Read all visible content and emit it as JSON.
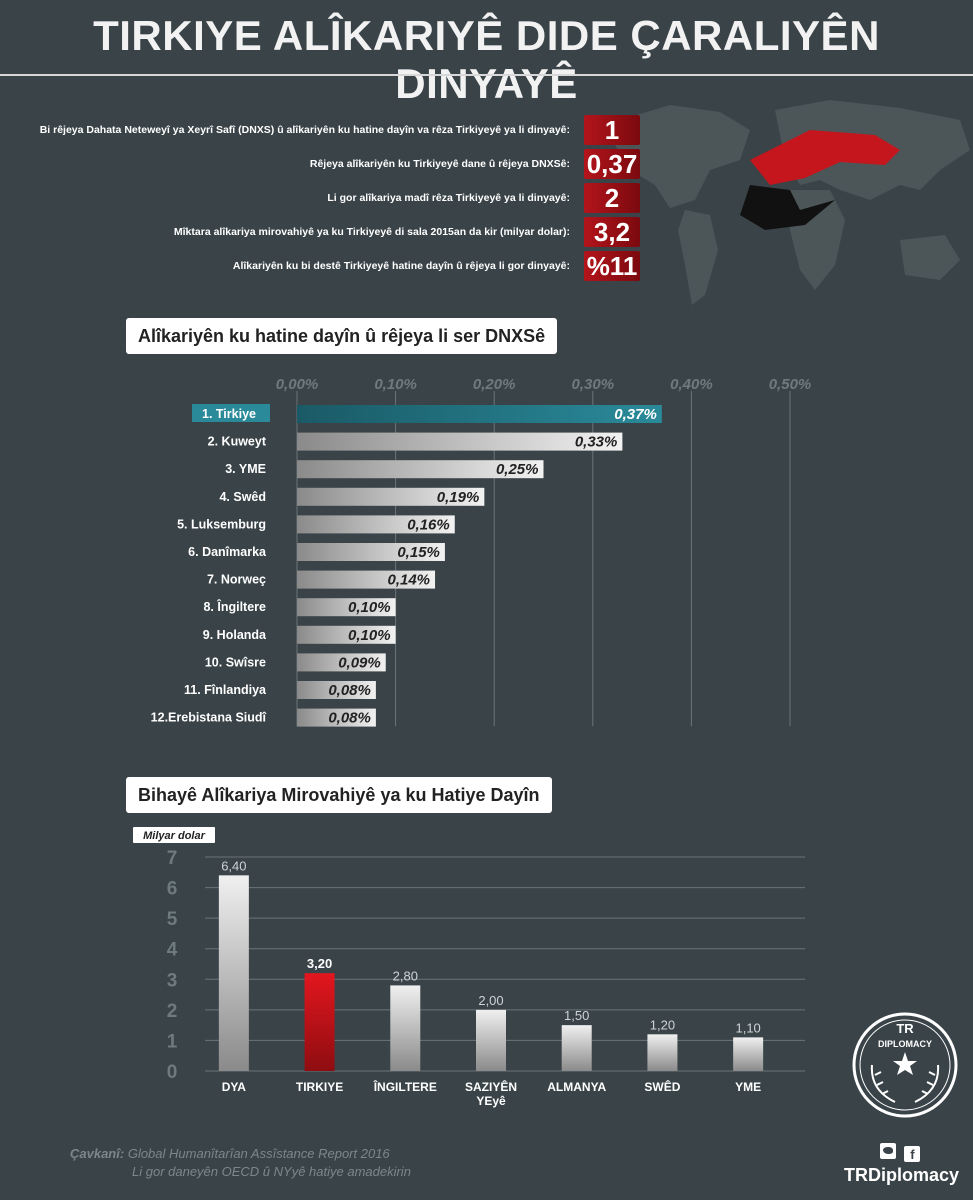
{
  "header": {
    "title": "TIRKIYE ALÎKARIYÊ DIDE ÇARALIYÊN DINYAYÊ"
  },
  "stats": [
    {
      "label": "Bi rêjeya Dahata Neteweyî ya Xeyrî Safî (DNXS) û alîkariyên ku hatine dayîn va rêza Tirkiyeyê ya li dinyayê:",
      "value": "1"
    },
    {
      "label": "Rêjeya alîkariyên ku Tirkiyeyê dane û rêjeya DNXSê:",
      "value": "0,37"
    },
    {
      "label": "Li gor alîkariya madî rêza Tirkiyeyê ya li dinyayê:",
      "value": "2"
    },
    {
      "label": "Mîktara alîkariya mirovahiyê ya ku Tirkiyeyê di sala 2015an da kir (milyar dolar):",
      "value": "3,2"
    },
    {
      "label": "Alîkariyên ku bi destê Tirkiyeyê hatine dayîn û rêjeya li gor dinyayê:",
      "value": "%11"
    }
  ],
  "colors": {
    "background": "#3a4448",
    "highlight_red": "#d71920",
    "highlight_teal": "#1f6f7e",
    "bar_gray": "#bdbdbd"
  },
  "icons": [
    "world-map-icon",
    "hands-icon",
    "twitter-icon",
    "facebook-icon",
    "star-icon"
  ],
  "chart_data": [
    {
      "type": "bar",
      "orientation": "horizontal",
      "title": "Alîkariyên ku hatine dayîn û rêjeya li ser DNXSê",
      "ticks": [
        "0,00%",
        "0,10%",
        "0,20%",
        "0,30%",
        "0,40%",
        "0,50%"
      ],
      "xlim": [
        0,
        0.5
      ],
      "grid": true,
      "highlight_index": 0,
      "categories": [
        "1. Tirkiye",
        "2. Kuweyt",
        "3. YME",
        "4. Swêd",
        "5. Luksemburg",
        "6. Danîmarka",
        "7. Norweç",
        "8. Îngiltere",
        "9. Holanda",
        "10. Swîsre",
        "11. Fînlandiya",
        "12.Erebistana Siudî"
      ],
      "values": [
        0.37,
        0.33,
        0.25,
        0.19,
        0.16,
        0.15,
        0.14,
        0.1,
        0.1,
        0.09,
        0.08,
        0.08
      ],
      "value_labels": [
        "0,37%",
        "0,33%",
        "0,25%",
        "0,19%",
        "0,16%",
        "0,15%",
        "0,14%",
        "0,10%",
        "0,10%",
        "0,09%",
        "0,08%",
        "0,08%"
      ]
    },
    {
      "type": "bar",
      "orientation": "vertical",
      "title": "Bihayê Alîkariya Mirovahiyê ya ku Hatiye Dayîn",
      "ylabel": "Milyar dolar",
      "ylim": [
        0,
        7
      ],
      "yticks": [
        "0",
        "1",
        "2",
        "3",
        "4",
        "5",
        "6",
        "7"
      ],
      "grid": true,
      "highlight_index": 1,
      "categories": [
        "DYA",
        "TIRKIYE",
        "ÎNGILTERE",
        "SAZIYÊN YEyê",
        "ALMANYA",
        "SWÊD",
        "YME"
      ],
      "category_lines": [
        [
          "DYA"
        ],
        [
          "TIRKIYE"
        ],
        [
          "ÎNGILTERE"
        ],
        [
          "SAZIYÊN",
          "YEyê"
        ],
        [
          "ALMANYA"
        ],
        [
          "SWÊD"
        ],
        [
          "YME"
        ]
      ],
      "values": [
        6.4,
        3.2,
        2.8,
        2.0,
        1.5,
        1.2,
        1.1
      ],
      "value_labels": [
        "6,40",
        "3,20",
        "2,80",
        "2,00",
        "1,50",
        "1,20",
        "1,10"
      ]
    }
  ],
  "footer": {
    "source_label": "Çavkanî:",
    "source_text": "Global Humanîtarîan Assîstance Report 2016",
    "source_note": "Li gor daneyên OECD û NYyê hatiye amadekirin",
    "logo_top": "TR",
    "logo_text": "DIPLOMACY",
    "brand": "TRDiplomacy"
  }
}
